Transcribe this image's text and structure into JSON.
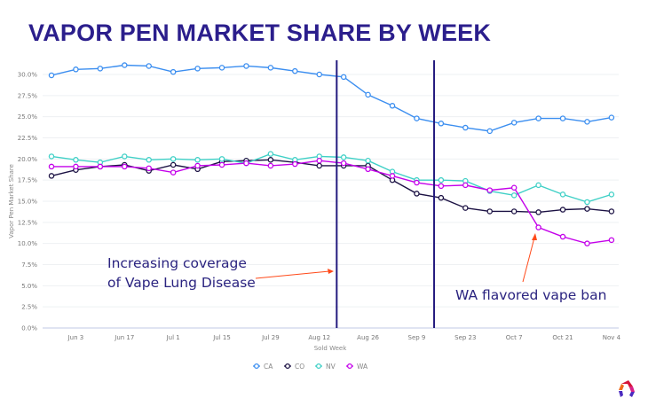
{
  "chart_data": {
    "type": "line",
    "title": "VAPOR PEN MARKET SHARE BY WEEK",
    "xlabel": "Sold Week",
    "ylabel": "Vapor Pen Market Share",
    "ylim": [
      0,
      31.5
    ],
    "yticks": [
      "0.0%",
      "2.5%",
      "5.0%",
      "7.5%",
      "10.0%",
      "12.5%",
      "15.0%",
      "17.5%",
      "20.0%",
      "22.5%",
      "25.0%",
      "27.5%",
      "30.0%"
    ],
    "ytick_values": [
      0,
      2.5,
      5,
      7.5,
      10,
      12.5,
      15,
      17.5,
      20,
      22.5,
      25,
      27.5,
      30
    ],
    "xtick_labels": [
      "Jun 3",
      "Jun 17",
      "Jul 1",
      "Jul 15",
      "Jul 29",
      "Aug 12",
      "Aug 26",
      "Sep 9",
      "Sep 23",
      "Oct 7",
      "Oct 21",
      "Nov 4"
    ],
    "x": [
      "May 27",
      "Jun 3",
      "Jun 10",
      "Jun 17",
      "Jun 24",
      "Jul 1",
      "Jul 8",
      "Jul 15",
      "Jul 22",
      "Jul 29",
      "Aug 5",
      "Aug 12",
      "Aug 19",
      "Aug 26",
      "Sep 2",
      "Sep 9",
      "Sep 16",
      "Sep 23",
      "Sep 30",
      "Oct 7",
      "Oct 14",
      "Oct 21",
      "Oct 28",
      "Nov 4"
    ],
    "grid": true,
    "legend_position": "bottom",
    "series": [
      {
        "name": "CA",
        "color": "#3b8ef0",
        "values": [
          29.9,
          30.6,
          30.7,
          31.1,
          31.0,
          30.3,
          30.7,
          30.8,
          31.0,
          30.8,
          30.4,
          30.0,
          29.7,
          27.6,
          26.3,
          24.8,
          24.2,
          23.7,
          23.3,
          24.3,
          24.8,
          24.8,
          24.4,
          24.9
        ]
      },
      {
        "name": "CO",
        "color": "#1c1244",
        "values": [
          18.0,
          18.7,
          19.1,
          19.3,
          18.6,
          19.3,
          18.8,
          19.7,
          19.8,
          19.9,
          19.6,
          19.2,
          19.2,
          19.2,
          17.5,
          15.9,
          15.4,
          14.2,
          13.8,
          13.8,
          13.7,
          14.0,
          14.1,
          13.8
        ]
      },
      {
        "name": "NV",
        "color": "#3fd0c6",
        "values": [
          20.3,
          19.9,
          19.6,
          20.3,
          19.9,
          20.0,
          19.9,
          20.0,
          19.5,
          20.6,
          19.9,
          20.3,
          20.2,
          19.8,
          18.5,
          17.5,
          17.5,
          17.4,
          16.2,
          15.7,
          16.9,
          15.8,
          14.9,
          15.8
        ]
      },
      {
        "name": "WA",
        "color": "#c400ea",
        "values": [
          19.1,
          19.1,
          19.1,
          19.1,
          18.9,
          18.4,
          19.2,
          19.3,
          19.5,
          19.2,
          19.4,
          19.8,
          19.5,
          18.8,
          18.0,
          17.2,
          16.8,
          16.9,
          16.3,
          16.6,
          11.9,
          10.8,
          10.0,
          10.4
        ]
      }
    ],
    "event_lines": [
      {
        "x": "Aug 17",
        "color": "#231a7e"
      },
      {
        "x": "Sep 14",
        "color": "#231a7e"
      }
    ],
    "annotations": [
      {
        "lines": [
          "Increasing coverage",
          "of Vape Lung Disease"
        ],
        "arrow_color": "#ff4a1a"
      },
      {
        "lines": [
          "WA flavored vape ban"
        ],
        "arrow_color": "#ff4a1a"
      }
    ]
  }
}
